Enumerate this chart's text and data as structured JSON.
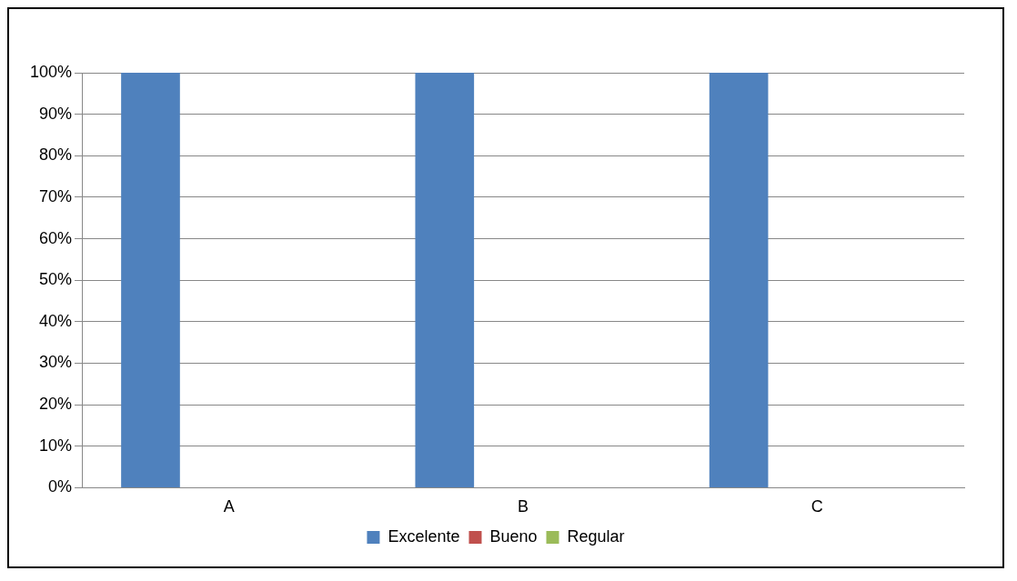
{
  "chart_data": {
    "type": "bar",
    "categories": [
      "A",
      "B",
      "C"
    ],
    "series": [
      {
        "name": "Excelente",
        "color": "#4f81bd",
        "values": [
          100,
          100,
          100
        ]
      },
      {
        "name": "Bueno",
        "color": "#c0504d",
        "values": [
          0,
          0,
          0
        ]
      },
      {
        "name": "Regular",
        "color": "#9bbb59",
        "values": [
          0,
          0,
          0
        ]
      }
    ],
    "ylim": [
      0,
      100
    ],
    "yticks": [
      {
        "value": 0,
        "label": "0%"
      },
      {
        "value": 10,
        "label": "10%"
      },
      {
        "value": 20,
        "label": "20%"
      },
      {
        "value": 30,
        "label": "30%"
      },
      {
        "value": 40,
        "label": "40%"
      },
      {
        "value": 50,
        "label": "50%"
      },
      {
        "value": 60,
        "label": "60%"
      },
      {
        "value": 70,
        "label": "70%"
      },
      {
        "value": 80,
        "label": "80%"
      },
      {
        "value": 90,
        "label": "90%"
      },
      {
        "value": 100,
        "label": "100%"
      }
    ],
    "grid": "y",
    "legend": "bottom"
  }
}
